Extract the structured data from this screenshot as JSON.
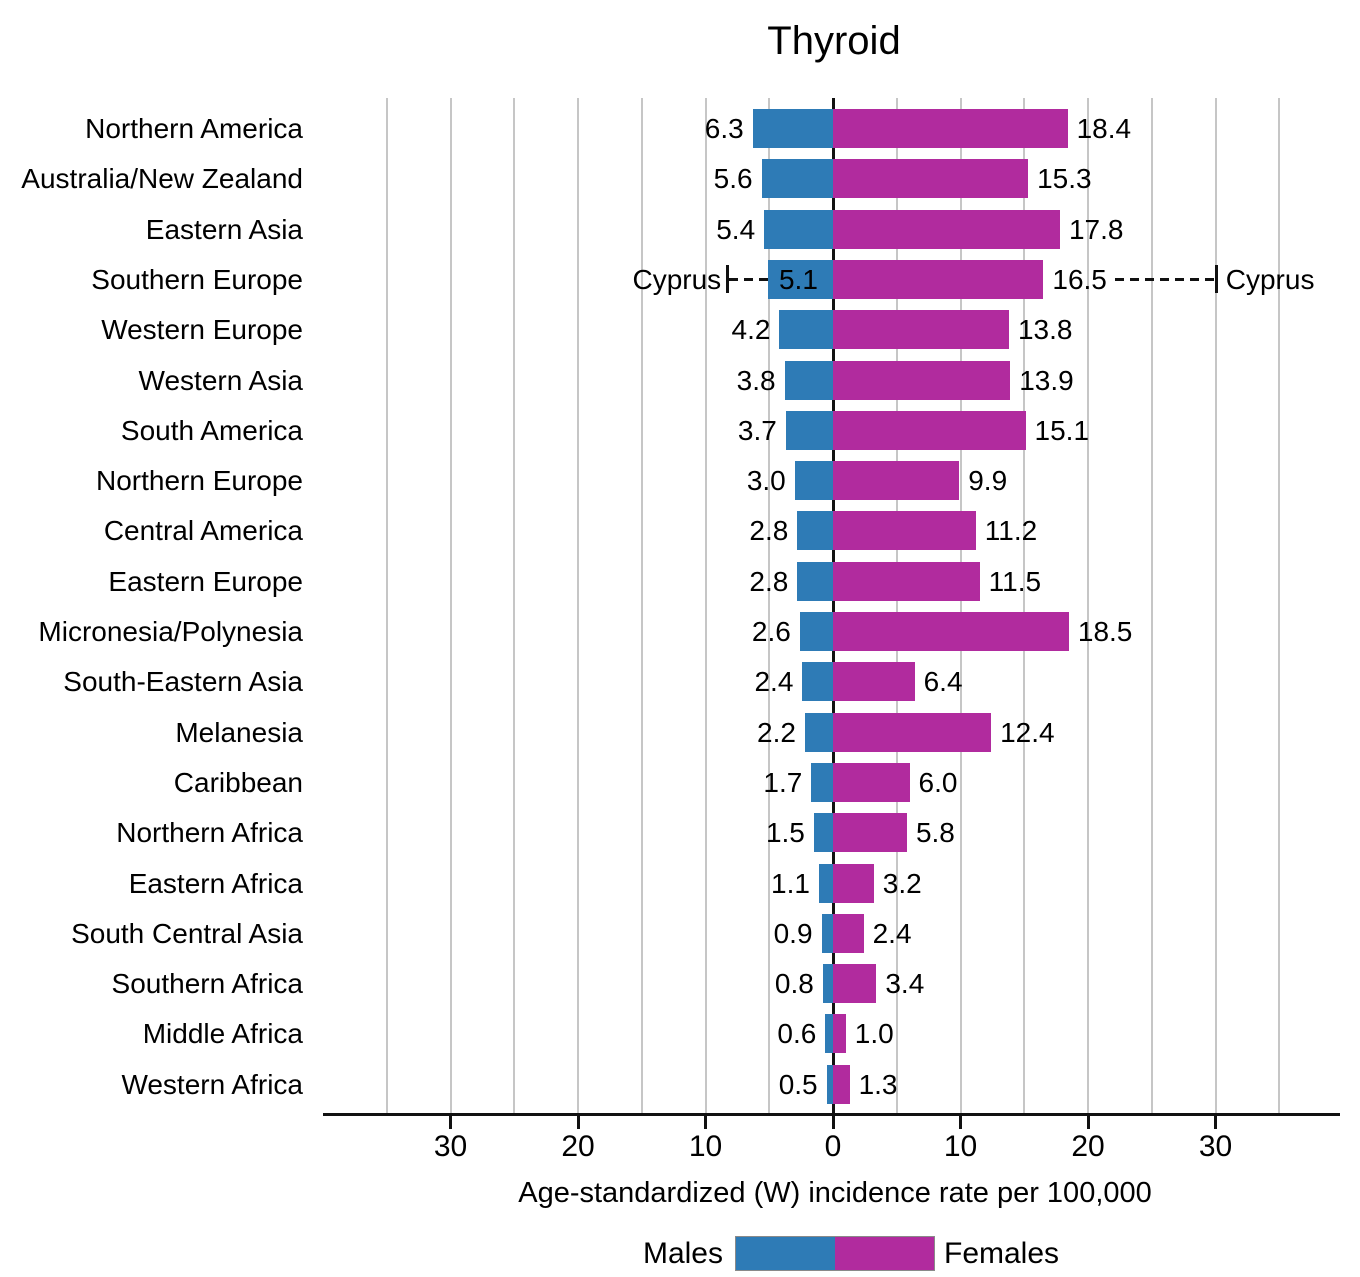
{
  "title": "Thyroid",
  "colors": {
    "males": "#2E7BB6",
    "females": "#B12B9E",
    "gridline": "#C6C6C6",
    "axis": "#111111"
  },
  "legend": {
    "males_label": "Males",
    "females_label": "Females"
  },
  "chart_data": {
    "type": "bar",
    "orientation": "diverging-horizontal",
    "title": "Thyroid",
    "xlabel": "Age-standardized (W) incidence rate per 100,000",
    "x_tick_values": [
      -30,
      -20,
      -10,
      0,
      10,
      20,
      30
    ],
    "x_tick_labels": [
      "30",
      "20",
      "10",
      "0",
      "10",
      "20",
      "30"
    ],
    "x_gridline_step": 5,
    "x_gridline_extent": 35,
    "xlim": [
      -40,
      40
    ],
    "grid": true,
    "legend_position": "bottom-center",
    "categories": [
      "Northern America",
      "Australia/New Zealand",
      "Eastern Asia",
      "Southern Europe",
      "Western Europe",
      "Western Asia",
      "South America",
      "Northern Europe",
      "Central America",
      "Eastern Europe",
      "Micronesia/Polynesia",
      "South-Eastern Asia",
      "Melanesia",
      "Caribbean",
      "Northern Africa",
      "Eastern Africa",
      "South Central Asia",
      "Southern Africa",
      "Middle Africa",
      "Western Africa"
    ],
    "series": [
      {
        "name": "Males",
        "side": "left",
        "color": "#2E7BB6",
        "values": [
          6.3,
          5.6,
          5.4,
          5.1,
          4.2,
          3.8,
          3.7,
          3.0,
          2.8,
          2.8,
          2.6,
          2.4,
          2.2,
          1.7,
          1.5,
          1.1,
          0.9,
          0.8,
          0.6,
          0.5
        ]
      },
      {
        "name": "Females",
        "side": "right",
        "color": "#B12B9E",
        "values": [
          18.4,
          15.3,
          17.8,
          16.5,
          13.8,
          13.9,
          15.1,
          9.9,
          11.2,
          11.5,
          18.5,
          6.4,
          12.4,
          6.0,
          5.8,
          3.2,
          2.4,
          3.4,
          1.0,
          1.3
        ]
      }
    ],
    "annotations": [
      {
        "label": "Cyprus",
        "category": "Southern Europe",
        "side": "left",
        "value_at_cap": 8.3
      },
      {
        "label": "Cyprus",
        "category": "Southern Europe",
        "side": "right",
        "value_at_cap": 30.1
      }
    ]
  }
}
